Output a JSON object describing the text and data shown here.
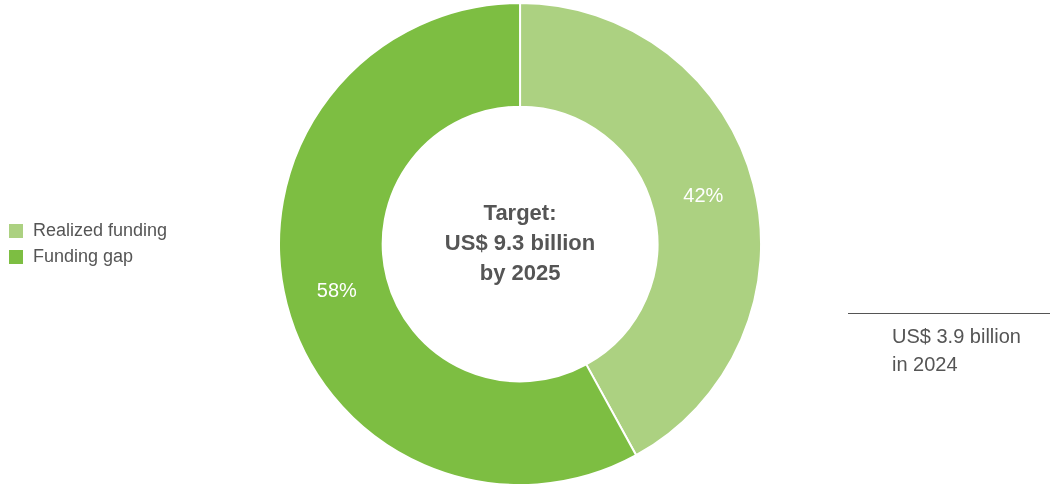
{
  "chart_data": {
    "type": "donut",
    "title": "Target:\nUS$ 9.3 billion\nby 2025",
    "categories": [
      "Realized funding",
      "Funding gap"
    ],
    "values": [
      42,
      58
    ],
    "value_labels": [
      "42%",
      "58%"
    ],
    "colors": [
      "#acd181",
      "#7dbe42"
    ],
    "legend": "left",
    "annotations": [
      "US$ 3.9 billion\nin 2024"
    ]
  }
}
